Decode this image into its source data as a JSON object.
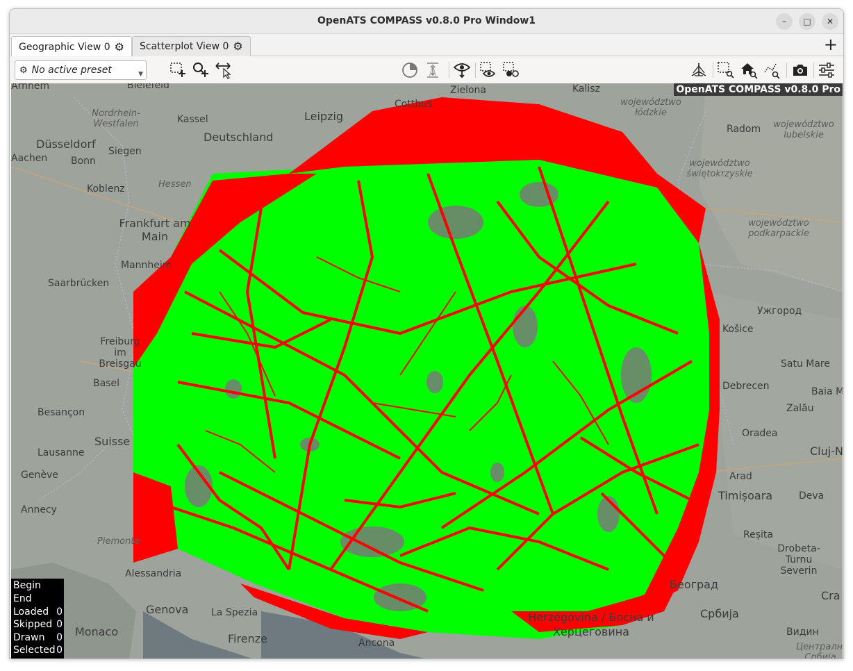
{
  "window": {
    "title": "OpenATS COMPASS v0.8.0 Pro Window1"
  },
  "tabs": [
    {
      "label": "Geographic View 0",
      "icon": "gear-icon",
      "active": true
    },
    {
      "label": "Scatterplot View 0",
      "icon": "gear-icon",
      "active": false
    }
  ],
  "toolbar": {
    "preset": "No active preset",
    "tools_left": [
      "select-rect-add-icon",
      "zoom-add-icon",
      "measure-distance-icon"
    ],
    "tools_center": [
      "time-filter-icon",
      "height-filter-icon",
      "show-selected-icon",
      "select-show-icon",
      "select-toggle-icon"
    ],
    "tools_right": [
      "3d-view-icon",
      "zoom-rect-icon",
      "home-zoom-icon",
      "zoom-data-icon",
      "screenshot-icon",
      "settings-sliders-icon"
    ]
  },
  "map": {
    "watermark": "OpenATS COMPASS v0.8.0 Pro",
    "colors": {
      "coverage_green": "#00ff00",
      "coverage_red": "#ff0000",
      "map_base": "#9aa09a"
    },
    "labels": [
      {
        "text": "Arnhem",
        "kind": "city"
      },
      {
        "text": "Bielefeld",
        "kind": "city"
      },
      {
        "text": "Zielona",
        "kind": "city"
      },
      {
        "text": "Kalisz",
        "kind": "city"
      },
      {
        "text": "województwo łódzkie",
        "kind": "region"
      },
      {
        "text": "Cottbus",
        "kind": "city"
      },
      {
        "text": "Nordrhein-Westfalen",
        "kind": "region"
      },
      {
        "text": "Kassel",
        "kind": "city"
      },
      {
        "text": "Leipzig",
        "kind": "city"
      },
      {
        "text": "Deutschland",
        "kind": "country"
      },
      {
        "text": "Radom",
        "kind": "city"
      },
      {
        "text": "województwo lubelskie",
        "kind": "region"
      },
      {
        "text": "Düsseldorf",
        "kind": "city"
      },
      {
        "text": "Aachen",
        "kind": "city"
      },
      {
        "text": "Bonn",
        "kind": "city"
      },
      {
        "text": "Siegen",
        "kind": "city"
      },
      {
        "text": "województwo świętokrzyskie",
        "kind": "region"
      },
      {
        "text": "Koblenz",
        "kind": "city"
      },
      {
        "text": "Hessen",
        "kind": "region"
      },
      {
        "text": "Frankfurt am Main",
        "kind": "city"
      },
      {
        "text": "województwo podkarpackie",
        "kind": "region"
      },
      {
        "text": "Mannheim",
        "kind": "city"
      },
      {
        "text": "Saarbrücken",
        "kind": "city"
      },
      {
        "text": "Freiburg im Breisgau",
        "kind": "city"
      },
      {
        "text": "Basel",
        "kind": "city"
      },
      {
        "text": "Besançon",
        "kind": "city"
      },
      {
        "text": "Suisse",
        "kind": "country"
      },
      {
        "text": "Lausanne",
        "kind": "city"
      },
      {
        "text": "Genève",
        "kind": "city"
      },
      {
        "text": "Annecy",
        "kind": "city"
      },
      {
        "text": "Piemonte",
        "kind": "region"
      },
      {
        "text": "Alessandria",
        "kind": "city"
      },
      {
        "text": "Genova",
        "kind": "city"
      },
      {
        "text": "La Spezia",
        "kind": "city"
      },
      {
        "text": "Monaco",
        "kind": "city"
      },
      {
        "text": "Firenze",
        "kind": "city"
      },
      {
        "text": "Ancona",
        "kind": "city"
      },
      {
        "text": "Ужгород",
        "kind": "city"
      },
      {
        "text": "Satu Mare",
        "kind": "city"
      },
      {
        "text": "Baia M",
        "kind": "city"
      },
      {
        "text": "Debrecen",
        "kind": "city"
      },
      {
        "text": "Zalău",
        "kind": "city"
      },
      {
        "text": "Oradea",
        "kind": "city"
      },
      {
        "text": "Cluj-Na",
        "kind": "city"
      },
      {
        "text": "Arad",
        "kind": "city"
      },
      {
        "text": "Timișoara",
        "kind": "city"
      },
      {
        "text": "Deva",
        "kind": "city"
      },
      {
        "text": "Reșita",
        "kind": "city"
      },
      {
        "text": "Drobeta-Turnu Severin",
        "kind": "city"
      },
      {
        "text": "Београд",
        "kind": "city"
      },
      {
        "text": "Србија",
        "kind": "country"
      },
      {
        "text": "Cra",
        "kind": "city"
      },
      {
        "text": "Видин",
        "kind": "city"
      },
      {
        "text": "Централна Србија",
        "kind": "region"
      },
      {
        "text": "Herzegovina / Босна и Херцеговина",
        "kind": "country"
      },
      {
        "text": "Košice",
        "kind": "city"
      }
    ]
  },
  "stats": [
    {
      "label": "Begin",
      "value": ""
    },
    {
      "label": "End",
      "value": ""
    },
    {
      "label": "Loaded",
      "value": "0"
    },
    {
      "label": "Skipped",
      "value": "0"
    },
    {
      "label": "Drawn",
      "value": "0"
    },
    {
      "label": "Selected",
      "value": "0"
    }
  ]
}
